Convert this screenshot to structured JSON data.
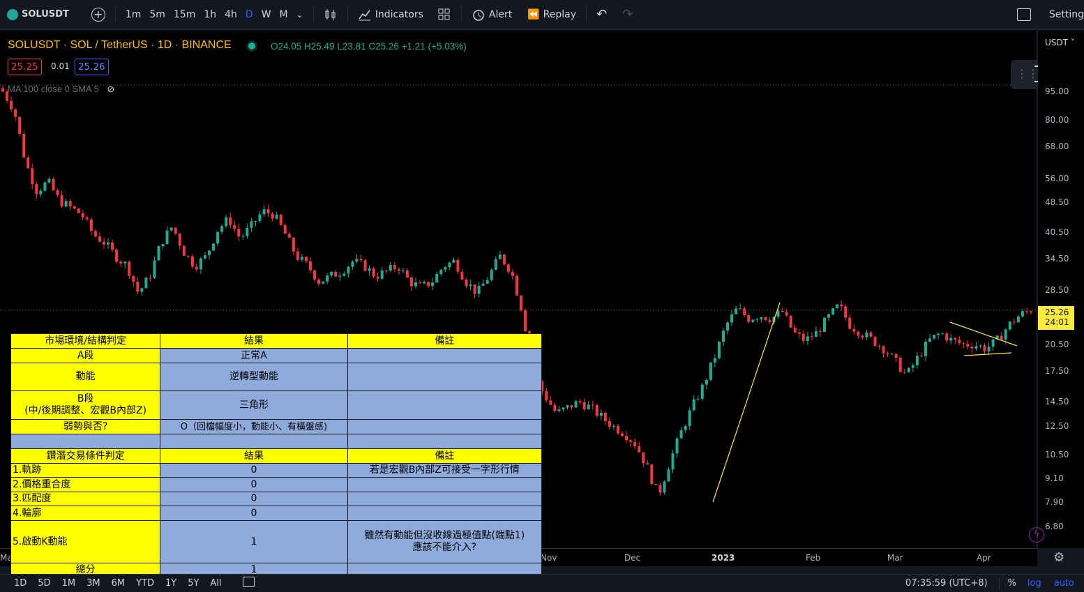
{
  "toolbar": {
    "symbol": "SOLUSDT",
    "timeframes": [
      "1m",
      "5m",
      "15m",
      "1h",
      "4h",
      "D",
      "W",
      "M"
    ],
    "active_timeframe": "D",
    "indicators_label": "Indicators",
    "alert_label": "Alert",
    "replay_label": "Replay",
    "settings_label": "Setting"
  },
  "legend": {
    "title": "SOLUSDT · SOL / TetherUS · 1D · BINANCE",
    "ohlc": "O24.05  H25.49  L23.81  C25.26  +1.21 (+5.03%)",
    "bid": "25.25",
    "spread": "0.01",
    "ask": "25.26",
    "ma": "MA 100 close 0 SMA 5"
  },
  "price_axis": {
    "currency": "USDT",
    "ticks": [
      "95.00",
      "80.00",
      "68.00",
      "56.00",
      "48.50",
      "40.50",
      "34.50",
      "28.50",
      "20.50",
      "17.50",
      "14.50",
      "12.50",
      "10.50",
      "9.10",
      "7.90",
      "6.80"
    ],
    "last_price": "25.26",
    "countdown": "24:01",
    "scale": "log"
  },
  "time_axis": {
    "ticks": [
      "Ma",
      "Nov",
      "Dec",
      "2023",
      "Feb",
      "Mar",
      "Apr"
    ]
  },
  "bottom_bar": {
    "ranges": [
      "1D",
      "5D",
      "1M",
      "3M",
      "6M",
      "YTD",
      "1Y",
      "5Y",
      "All"
    ],
    "clock": "07:35:59 (UTC+8)",
    "percent": "%",
    "log": "log",
    "auto": "auto"
  },
  "table": {
    "section1": {
      "headers": [
        "市場環境/結構判定",
        "結果",
        "備註"
      ],
      "rows": [
        {
          "label": "A段",
          "result": "正常A",
          "note": ""
        },
        {
          "label": "動能",
          "result": "逆轉型動能",
          "note": ""
        },
        {
          "label": "B段\n(中/後期調整、宏觀B內部Z)",
          "result": "三角形",
          "note": ""
        },
        {
          "label": "弱勢與否?",
          "result": "O（回檔幅度小，動能小、有橫盤感)",
          "note": ""
        }
      ]
    },
    "section2": {
      "headers": [
        "鑽潛交易條件判定",
        "結果",
        "備註"
      ],
      "rows": [
        {
          "label": "1.軌跡",
          "result": "0",
          "note": "若是宏觀B內部Z可接受一字形行情"
        },
        {
          "label": "2.價格重合度",
          "result": "0",
          "note": ""
        },
        {
          "label": "3.匹配度",
          "result": "0",
          "note": ""
        },
        {
          "label": "4.輪廓",
          "result": "0",
          "note": ""
        },
        {
          "label": "5.啟動K動能",
          "result": "1",
          "note": "雖然有動能但沒收線過極值點(端點1)\n應該不能介入?"
        },
        {
          "label": "總分",
          "result": "1",
          "note": ""
        }
      ]
    }
  },
  "colors": {
    "up": "#22ab94",
    "down": "#f23645",
    "legend": "#ffbf00",
    "table_header": "#ffff00",
    "table_body": "#8eaadb",
    "pattern_line": "#ffeb3b"
  },
  "chart_data": {
    "type": "candlestick",
    "y_scale": "log",
    "ylim": [
      6.5,
      100
    ],
    "last": 25.26,
    "series": [
      {
        "name": "SOLUSDT",
        "close_path": [
          95,
          85,
          62,
          52,
          55,
          49,
          47,
          45,
          40,
          38,
          35,
          33,
          28,
          31,
          38,
          42,
          36,
          33,
          35,
          41,
          44,
          39,
          42,
          46,
          45,
          40,
          35,
          33,
          30,
          31,
          32,
          34,
          33,
          31,
          32,
          33,
          30,
          29,
          30,
          33,
          34,
          30,
          28,
          31,
          35,
          32,
          25,
          17,
          15,
          13.5,
          14,
          14.5,
          14,
          13.2,
          12.5,
          12,
          11.2,
          9.8,
          8.2,
          10,
          12,
          14,
          16,
          19,
          23,
          25.5,
          24,
          24.5,
          24,
          25,
          22,
          21,
          22,
          24,
          26,
          23,
          22,
          21,
          20,
          18.5,
          17,
          19,
          21,
          22,
          21,
          20.5,
          20.5,
          20,
          21,
          23,
          24.5,
          25.3
        ]
      }
    ]
  }
}
